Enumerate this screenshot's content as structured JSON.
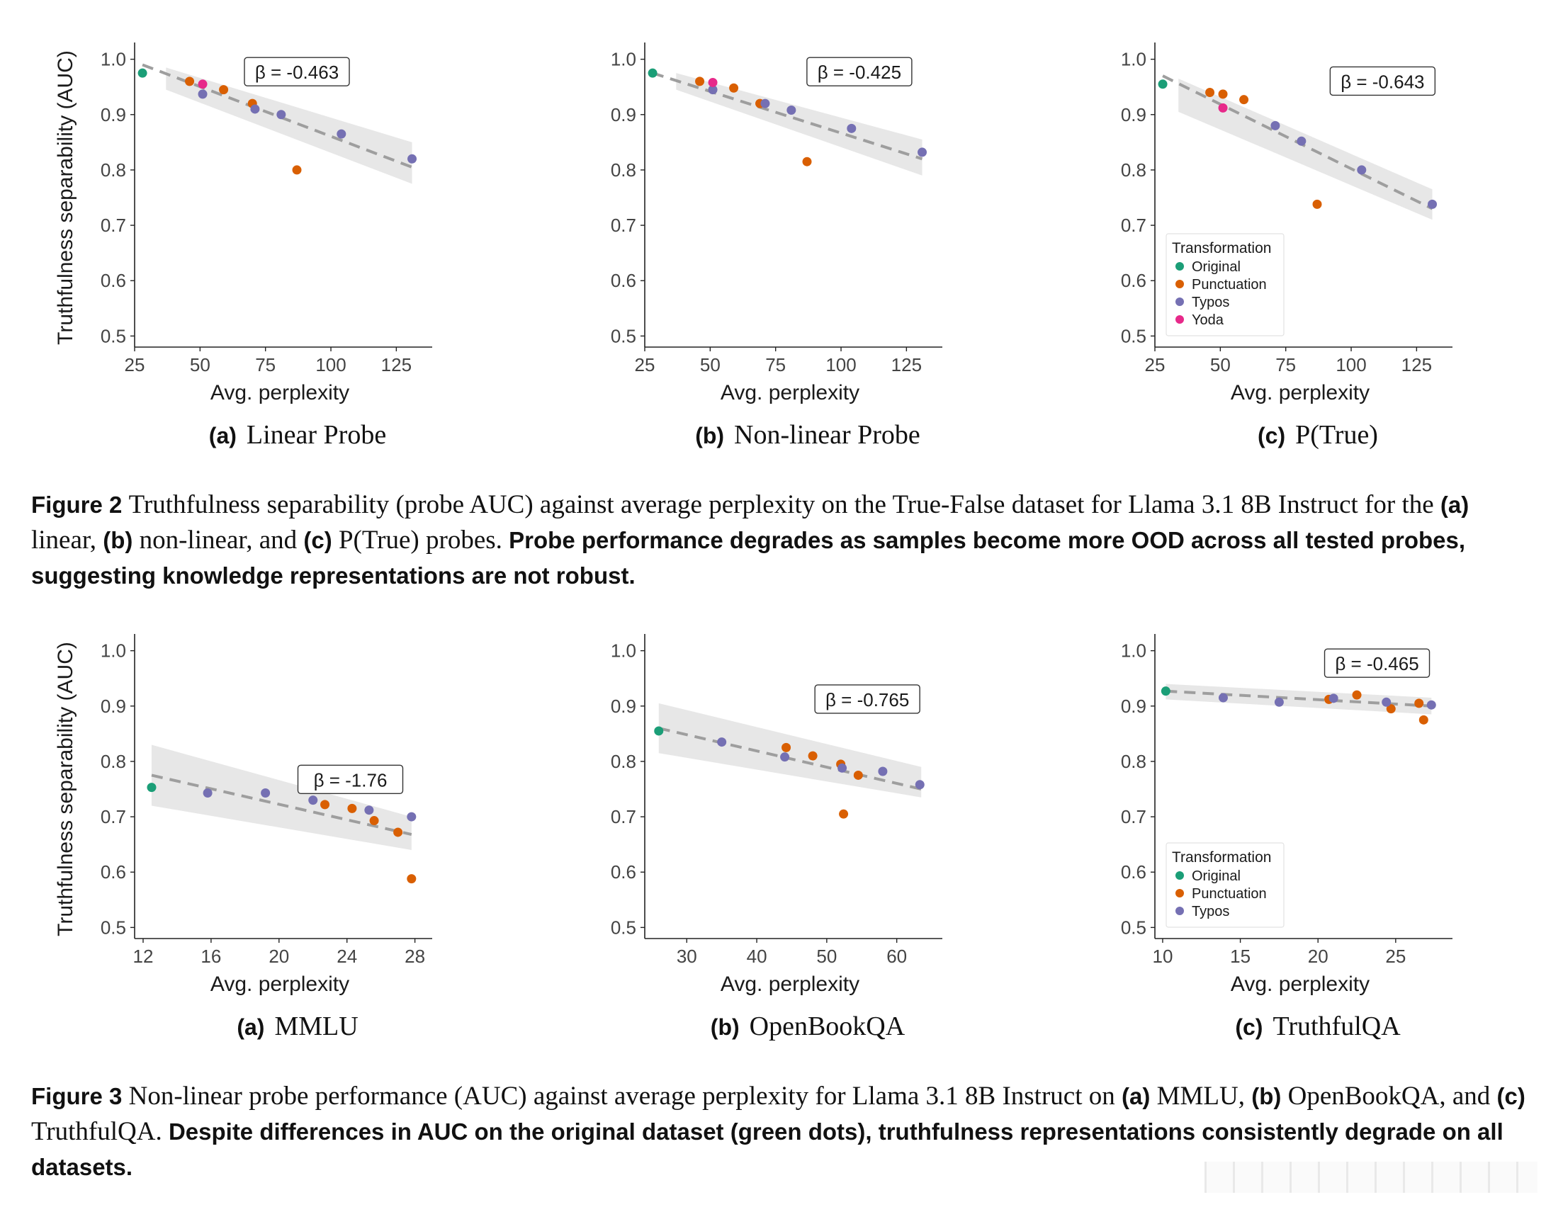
{
  "colors": {
    "Original": "#1b9e77",
    "Punctuation": "#d95f02",
    "Typos": "#7570b3",
    "Yoda": "#e7298a",
    "band": "#e7e7e7",
    "fit": "#9e9e9e"
  },
  "figure2": {
    "caption_label": "Figure 2",
    "caption_text": "Truthfulness separability (probe AUC) against average perplexity on the True-False dataset for Llama 3.1 8B Instruct for the ",
    "caption_a": "(a)",
    "caption_a_text": " linear, ",
    "caption_b": "(b)",
    "caption_b_text": " non-linear, and ",
    "caption_c": "(c)",
    "caption_c_text": " P(True) probes. ",
    "caption_takeaway": "Probe performance degrades as samples become more OOD across all tested probes, suggesting knowledge representations are not robust.",
    "subcaptions": [
      {
        "label": "(a)",
        "title": "Linear Probe"
      },
      {
        "label": "(b)",
        "title": "Non-linear Probe"
      },
      {
        "label": "(c)",
        "title": "P(True)"
      }
    ]
  },
  "figure3": {
    "caption_label": "Figure 3",
    "caption_text": "Non-linear probe performance (AUC) against average perplexity for Llama 3.1 8B Instruct on ",
    "caption_a": "(a)",
    "caption_a_text": " MMLU, ",
    "caption_b": "(b)",
    "caption_b_text": " OpenBookQA, and ",
    "caption_c": "(c)",
    "caption_c_text": " TruthfulQA. ",
    "caption_takeaway": "Despite differences in AUC on the original dataset (green dots), truthfulness representations consistently degrade on all datasets.",
    "subcaptions": [
      {
        "label": "(a)",
        "title": "MMLU"
      },
      {
        "label": "(b)",
        "title": "OpenBookQA"
      },
      {
        "label": "(c)",
        "title": "TruthfulQA"
      }
    ]
  },
  "chart_data": [
    {
      "id": "linear-probe",
      "type": "scatter",
      "xlabel": "Avg. perplexity",
      "ylabel": "Truthfulness separability (AUC)",
      "xlim": [
        25,
        136
      ],
      "ylim": [
        0.48,
        1.02
      ],
      "xticks": [
        25,
        50,
        75,
        100,
        125
      ],
      "yticks": [
        0.5,
        0.6,
        0.7,
        0.8,
        0.9,
        1.0
      ],
      "beta_label": "β = -0.463",
      "beta_at": [
        87,
        0.975
      ],
      "fit": {
        "x": [
          28,
          131
        ],
        "y": [
          0.99,
          0.805
        ]
      },
      "band": {
        "x": [
          37,
          131
        ],
        "lower": [
          0.945,
          0.775
        ],
        "upper": [
          0.985,
          0.85
        ]
      },
      "legend": null,
      "series": [
        {
          "name": "Original",
          "x": [
            28
          ],
          "y": [
            0.975
          ]
        },
        {
          "name": "Punctuation",
          "x": [
            46,
            59,
            70,
            87
          ],
          "y": [
            0.96,
            0.945,
            0.92,
            0.8
          ]
        },
        {
          "name": "Typos",
          "x": [
            51,
            71,
            81,
            104,
            131
          ],
          "y": [
            0.937,
            0.91,
            0.9,
            0.865,
            0.82
          ]
        },
        {
          "name": "Yoda",
          "x": [
            51
          ],
          "y": [
            0.955
          ]
        }
      ]
    },
    {
      "id": "non-linear-probe",
      "type": "scatter",
      "xlabel": "Avg. perplexity",
      "ylabel": "",
      "xlim": [
        25,
        136
      ],
      "ylim": [
        0.48,
        1.02
      ],
      "xticks": [
        25,
        50,
        75,
        100,
        125
      ],
      "yticks": [
        0.5,
        0.6,
        0.7,
        0.8,
        0.9,
        1.0
      ],
      "beta_label": "β = -0.425",
      "beta_at": [
        107,
        0.975
      ],
      "fit": {
        "x": [
          28,
          131
        ],
        "y": [
          0.975,
          0.82
        ]
      },
      "band": {
        "x": [
          37,
          131
        ],
        "lower": [
          0.945,
          0.79
        ],
        "upper": [
          0.975,
          0.855
        ]
      },
      "legend": null,
      "series": [
        {
          "name": "Original",
          "x": [
            28
          ],
          "y": [
            0.975
          ]
        },
        {
          "name": "Punctuation",
          "x": [
            46,
            59,
            69,
            87
          ],
          "y": [
            0.96,
            0.948,
            0.92,
            0.815
          ]
        },
        {
          "name": "Typos",
          "x": [
            51,
            71,
            81,
            104,
            131
          ],
          "y": [
            0.945,
            0.92,
            0.908,
            0.875,
            0.832
          ]
        },
        {
          "name": "Yoda",
          "x": [
            51
          ],
          "y": [
            0.958
          ]
        }
      ]
    },
    {
      "id": "p-true",
      "type": "scatter",
      "xlabel": "Avg. perplexity",
      "ylabel": "",
      "xlim": [
        25,
        136
      ],
      "ylim": [
        0.48,
        1.02
      ],
      "xticks": [
        25,
        50,
        75,
        100,
        125
      ],
      "yticks": [
        0.5,
        0.6,
        0.7,
        0.8,
        0.9,
        1.0
      ],
      "beta_label": "β = -0.643",
      "beta_at": [
        112,
        0.958
      ],
      "fit": {
        "x": [
          28,
          131
        ],
        "y": [
          0.97,
          0.73
        ]
      },
      "band": {
        "x": [
          34,
          131
        ],
        "lower": [
          0.905,
          0.71
        ],
        "upper": [
          0.965,
          0.765
        ]
      },
      "legend": {
        "title": "Transformation",
        "items": [
          "Original",
          "Punctuation",
          "Typos",
          "Yoda"
        ],
        "position": "bottom-left"
      },
      "series": [
        {
          "name": "Original",
          "x": [
            28
          ],
          "y": [
            0.955
          ]
        },
        {
          "name": "Punctuation",
          "x": [
            46,
            51,
            59,
            87
          ],
          "y": [
            0.94,
            0.937,
            0.927,
            0.738
          ]
        },
        {
          "name": "Typos",
          "x": [
            71,
            81,
            104,
            131
          ],
          "y": [
            0.88,
            0.852,
            0.8,
            0.738
          ]
        },
        {
          "name": "Yoda",
          "x": [
            51
          ],
          "y": [
            0.912
          ]
        }
      ]
    },
    {
      "id": "mmlu",
      "type": "scatter",
      "xlabel": "Avg. perplexity",
      "ylabel": "Truthfulness separability (AUC)",
      "xlim": [
        11.5,
        28.6
      ],
      "ylim": [
        0.48,
        1.02
      ],
      "xticks": [
        12,
        16,
        20,
        24,
        28
      ],
      "yticks": [
        0.5,
        0.6,
        0.7,
        0.8,
        0.9,
        1.0
      ],
      "beta_label": "β = -1.76",
      "beta_at": [
        24.2,
        0.765
      ],
      "fit": {
        "x": [
          12.5,
          27.8
        ],
        "y": [
          0.775,
          0.668
        ]
      },
      "band": {
        "x": [
          12.5,
          27.8
        ],
        "lower": [
          0.72,
          0.64
        ],
        "upper": [
          0.83,
          0.7
        ]
      },
      "legend": null,
      "series": [
        {
          "name": "Original",
          "x": [
            12.5
          ],
          "y": [
            0.753
          ]
        },
        {
          "name": "Punctuation",
          "x": [
            22.7,
            24.3,
            25.6,
            27.0,
            27.8
          ],
          "y": [
            0.722,
            0.715,
            0.693,
            0.672,
            0.588
          ]
        },
        {
          "name": "Typos",
          "x": [
            15.8,
            19.2,
            22.0,
            25.3,
            27.8
          ],
          "y": [
            0.743,
            0.743,
            0.73,
            0.712,
            0.7
          ]
        }
      ]
    },
    {
      "id": "openbookqa",
      "type": "scatter",
      "xlabel": "Avg. perplexity",
      "ylabel": "",
      "xlim": [
        24,
        65.5
      ],
      "ylim": [
        0.48,
        1.02
      ],
      "xticks": [
        30,
        40,
        50,
        60
      ],
      "yticks": [
        0.5,
        0.6,
        0.7,
        0.8,
        0.9,
        1.0
      ],
      "beta_label": "β = -0.765",
      "beta_at": [
        55.8,
        0.91
      ],
      "fit": {
        "x": [
          26,
          63.5
        ],
        "y": [
          0.86,
          0.75
        ]
      },
      "band": {
        "x": [
          26,
          63.5
        ],
        "lower": [
          0.815,
          0.735
        ],
        "upper": [
          0.905,
          0.79
        ]
      },
      "legend": null,
      "series": [
        {
          "name": "Original",
          "x": [
            26
          ],
          "y": [
            0.855
          ]
        },
        {
          "name": "Punctuation",
          "x": [
            44.2,
            48,
            52,
            54.5,
            52.4
          ],
          "y": [
            0.825,
            0.81,
            0.795,
            0.775,
            0.705
          ]
        },
        {
          "name": "Typos",
          "x": [
            35,
            44,
            52.2,
            58,
            63.3
          ],
          "y": [
            0.835,
            0.808,
            0.788,
            0.782,
            0.758
          ]
        }
      ]
    },
    {
      "id": "truthfulqa",
      "type": "scatter",
      "xlabel": "Avg. perplexity",
      "ylabel": "",
      "xlim": [
        9.5,
        28.2
      ],
      "ylim": [
        0.48,
        1.02
      ],
      "xticks": [
        10,
        15,
        20,
        25
      ],
      "yticks": [
        0.5,
        0.6,
        0.7,
        0.8,
        0.9,
        1.0
      ],
      "beta_label": "β = -0.465",
      "beta_at": [
        23.8,
        0.975
      ],
      "fit": {
        "x": [
          10.2,
          27.3
        ],
        "y": [
          0.927,
          0.9
        ]
      },
      "band": {
        "x": [
          10.2,
          27.3
        ],
        "lower": [
          0.912,
          0.885
        ],
        "upper": [
          0.94,
          0.915
        ]
      },
      "legend": {
        "title": "Transformation",
        "items": [
          "Original",
          "Punctuation",
          "Typos"
        ],
        "position": "bottom-left"
      },
      "series": [
        {
          "name": "Original",
          "x": [
            10.2
          ],
          "y": [
            0.927
          ]
        },
        {
          "name": "Punctuation",
          "x": [
            20.7,
            22.5,
            24.7,
            26.5,
            26.8
          ],
          "y": [
            0.912,
            0.92,
            0.895,
            0.905,
            0.875
          ]
        },
        {
          "name": "Typos",
          "x": [
            13.9,
            17.5,
            21.0,
            24.4,
            27.3
          ],
          "y": [
            0.915,
            0.907,
            0.914,
            0.907,
            0.902
          ]
        }
      ]
    }
  ]
}
